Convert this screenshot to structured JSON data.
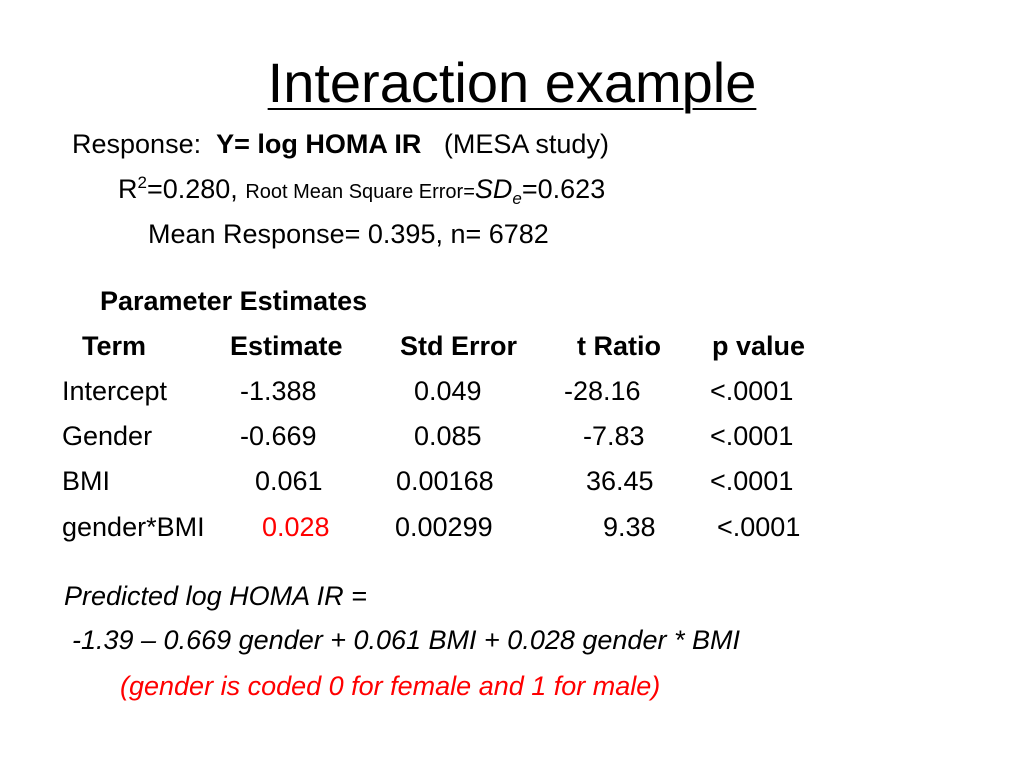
{
  "title": "Interaction example",
  "response": {
    "label": "Response:",
    "variable": "Y= log HOMA IR",
    "study": "(MESA study)"
  },
  "fit": {
    "r_label": "R",
    "r_sup": "2",
    "r_value": "=0.280,",
    "rmse_label": "Root Mean Square Error=",
    "sd_label": "SD",
    "sd_sub": "e",
    "sd_value": "=0.623"
  },
  "mean_line": "Mean Response= 0.395,  n= 6782",
  "param_heading": "Parameter Estimates",
  "table": {
    "headers": [
      "Term",
      "Estimate",
      "Std Error",
      "t Ratio",
      "p value"
    ],
    "rows": [
      {
        "term": "Intercept",
        "estimate": "-1.388",
        "std_error": "0.049",
        "t_ratio": "-28.16",
        "p_value": "<.0001"
      },
      {
        "term": "Gender",
        "estimate": "-0.669",
        "std_error": "0.085",
        "t_ratio": "-7.83",
        "p_value": "<.0001"
      },
      {
        "term": "BMI",
        "estimate": "0.061",
        "std_error": "0.00168",
        "t_ratio": "36.45",
        "p_value": "<.0001"
      },
      {
        "term": "gender*BMI",
        "estimate": "0.028",
        "std_error": "0.00299",
        "t_ratio": "9.38",
        "p_value": "<.0001"
      }
    ]
  },
  "prediction": {
    "line1": "Predicted log HOMA IR =",
    "line2": "-1.39 – 0.669 gender + 0.061 BMI  + 0.028 gender * BMI",
    "note": "(gender is coded 0 for female  and 1 for male)"
  },
  "colors": {
    "highlight": "#ff0000",
    "text": "#000000",
    "background": "#ffffff"
  }
}
